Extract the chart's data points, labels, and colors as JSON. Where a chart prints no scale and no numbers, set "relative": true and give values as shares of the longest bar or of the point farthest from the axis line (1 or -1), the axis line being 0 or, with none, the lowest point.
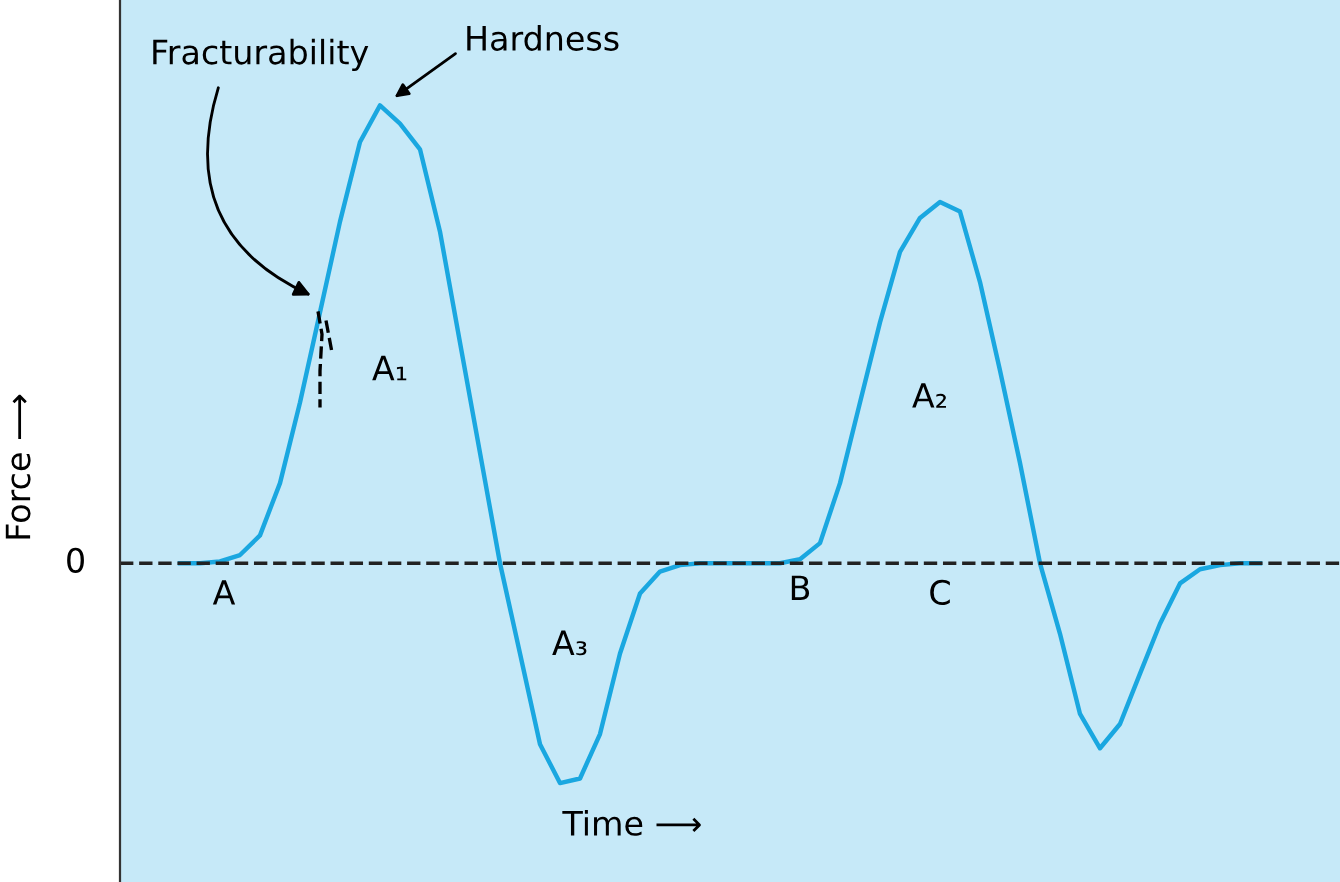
{
  "chart_data": {
    "type": "line",
    "relative": true,
    "xlabel": "Time ⟶",
    "ylabel": "Force ⟶",
    "categories": [
      null,
      null,
      null,
      null,
      null,
      null,
      null,
      null,
      null,
      null,
      null,
      null,
      null,
      null,
      null,
      null,
      null,
      null,
      null,
      null,
      null,
      null,
      null,
      null,
      null,
      null,
      null,
      null,
      null,
      null,
      null,
      null,
      null,
      null,
      null,
      null,
      null,
      null,
      null,
      null,
      null,
      null,
      null,
      null,
      null,
      null,
      null,
      null,
      null,
      null,
      null,
      null,
      null,
      null,
      null
    ],
    "series": [
      {
        "color": "#1aa7e0",
        "values": [
          0,
          0,
          0.004,
          0.018,
          0.061,
          0.175,
          0.351,
          0.548,
          0.746,
          0.92,
          1,
          0.96,
          0.904,
          0.724,
          0.482,
          0.241,
          0,
          -0.197,
          -0.395,
          -0.48,
          -0.47,
          -0.373,
          -0.197,
          -0.066,
          -0.018,
          -0.004,
          0,
          0,
          0,
          0,
          0,
          0.009,
          0.044,
          0.175,
          0.351,
          0.526,
          0.68,
          0.754,
          0.789,
          0.768,
          0.614,
          0.421,
          0.219,
          0,
          -0.154,
          -0.329,
          -0.404,
          -0.351,
          -0.241,
          -0.132,
          -0.044,
          -0.013,
          -0.004,
          0,
          0
        ]
      }
    ],
    "ref_lines": [
      {
        "axis": "y",
        "value": 0,
        "label": "0",
        "color": "#222222",
        "line_style": "dashed"
      }
    ],
    "annotations": [
      "Fracturability",
      "Hardness",
      "A",
      "A₁",
      "A₃",
      "B",
      "C",
      "A₂"
    ],
    "line_style": "solid"
  }
}
